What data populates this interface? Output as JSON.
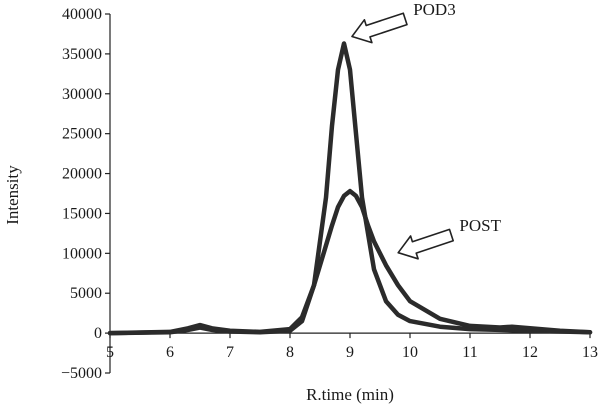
{
  "chart_data": {
    "type": "line",
    "title": "",
    "xlabel": "R.time (min)",
    "ylabel": "Intensity",
    "xlim": [
      5,
      13
    ],
    "ylim": [
      -5000,
      40000
    ],
    "xticks": [
      5,
      6,
      7,
      8,
      9,
      10,
      11,
      12,
      13
    ],
    "yticks": [
      -5000,
      0,
      5000,
      10000,
      15000,
      20000,
      25000,
      30000,
      35000,
      40000
    ],
    "grid": false,
    "series": [
      {
        "name": "POD3",
        "x": [
          5,
          6,
          6.3,
          6.5,
          6.7,
          7,
          7.5,
          8,
          8.2,
          8.4,
          8.6,
          8.7,
          8.8,
          8.9,
          9.0,
          9.1,
          9.2,
          9.4,
          9.6,
          9.8,
          10,
          10.5,
          11,
          11.5,
          12,
          12.5,
          13
        ],
        "values": [
          0,
          100,
          400,
          700,
          400,
          200,
          100,
          300,
          1500,
          6000,
          17000,
          26000,
          33000,
          36300,
          33000,
          25000,
          17000,
          8000,
          4000,
          2300,
          1500,
          800,
          500,
          400,
          300,
          200,
          100
        ]
      },
      {
        "name": "POST",
        "x": [
          5,
          6,
          6.3,
          6.5,
          6.7,
          7,
          7.5,
          8,
          8.2,
          8.4,
          8.6,
          8.7,
          8.8,
          8.9,
          9.0,
          9.1,
          9.2,
          9.3,
          9.4,
          9.6,
          9.8,
          10,
          10.5,
          11,
          11.5,
          11.7,
          12,
          12.5,
          13
        ],
        "values": [
          0,
          150,
          600,
          1000,
          600,
          300,
          150,
          500,
          2000,
          6000,
          11000,
          13500,
          15800,
          17200,
          17800,
          17200,
          15800,
          13500,
          11500,
          8500,
          6000,
          4000,
          1800,
          900,
          700,
          800,
          600,
          300,
          100
        ]
      }
    ],
    "annotations": [
      {
        "text": "POD3",
        "target": {
          "x": 8.95,
          "y": 36300
        }
      },
      {
        "text": "POST",
        "target": {
          "x": 9.72,
          "y": 9200
        }
      }
    ]
  }
}
